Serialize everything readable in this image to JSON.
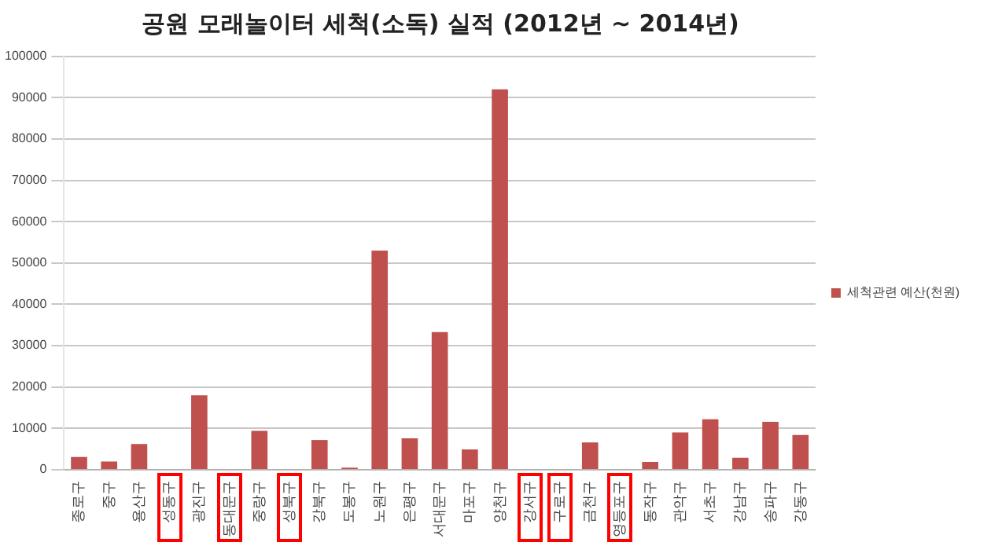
{
  "chart_data": {
    "type": "bar",
    "title": "공원 모래놀이터 세척(소독) 실적 (2012년 ~ 2014년)",
    "categories": [
      "종로구",
      "중구",
      "용산구",
      "성동구",
      "광진구",
      "동대문구",
      "중랑구",
      "성북구",
      "강북구",
      "도봉구",
      "노원구",
      "은평구",
      "서대문구",
      "마포구",
      "양천구",
      "강서구",
      "구로구",
      "금천구",
      "영등포구",
      "동작구",
      "관악구",
      "서초구",
      "강남구",
      "송파구",
      "강동구"
    ],
    "series": [
      {
        "name": "세척관련 예산(천원)",
        "color": "#c0504d",
        "values": [
          3100,
          2000,
          6200,
          0,
          18000,
          0,
          9400,
          0,
          7200,
          500,
          53000,
          7600,
          33300,
          4900,
          92000,
          0,
          0,
          6600,
          0,
          1900,
          9000,
          12200,
          2900,
          11600,
          8400
        ]
      }
    ],
    "ylim": [
      0,
      100000
    ],
    "yticks": [
      0,
      10000,
      20000,
      30000,
      40000,
      50000,
      60000,
      70000,
      80000,
      90000,
      100000
    ],
    "grid": "y",
    "legend": "right"
  }
}
